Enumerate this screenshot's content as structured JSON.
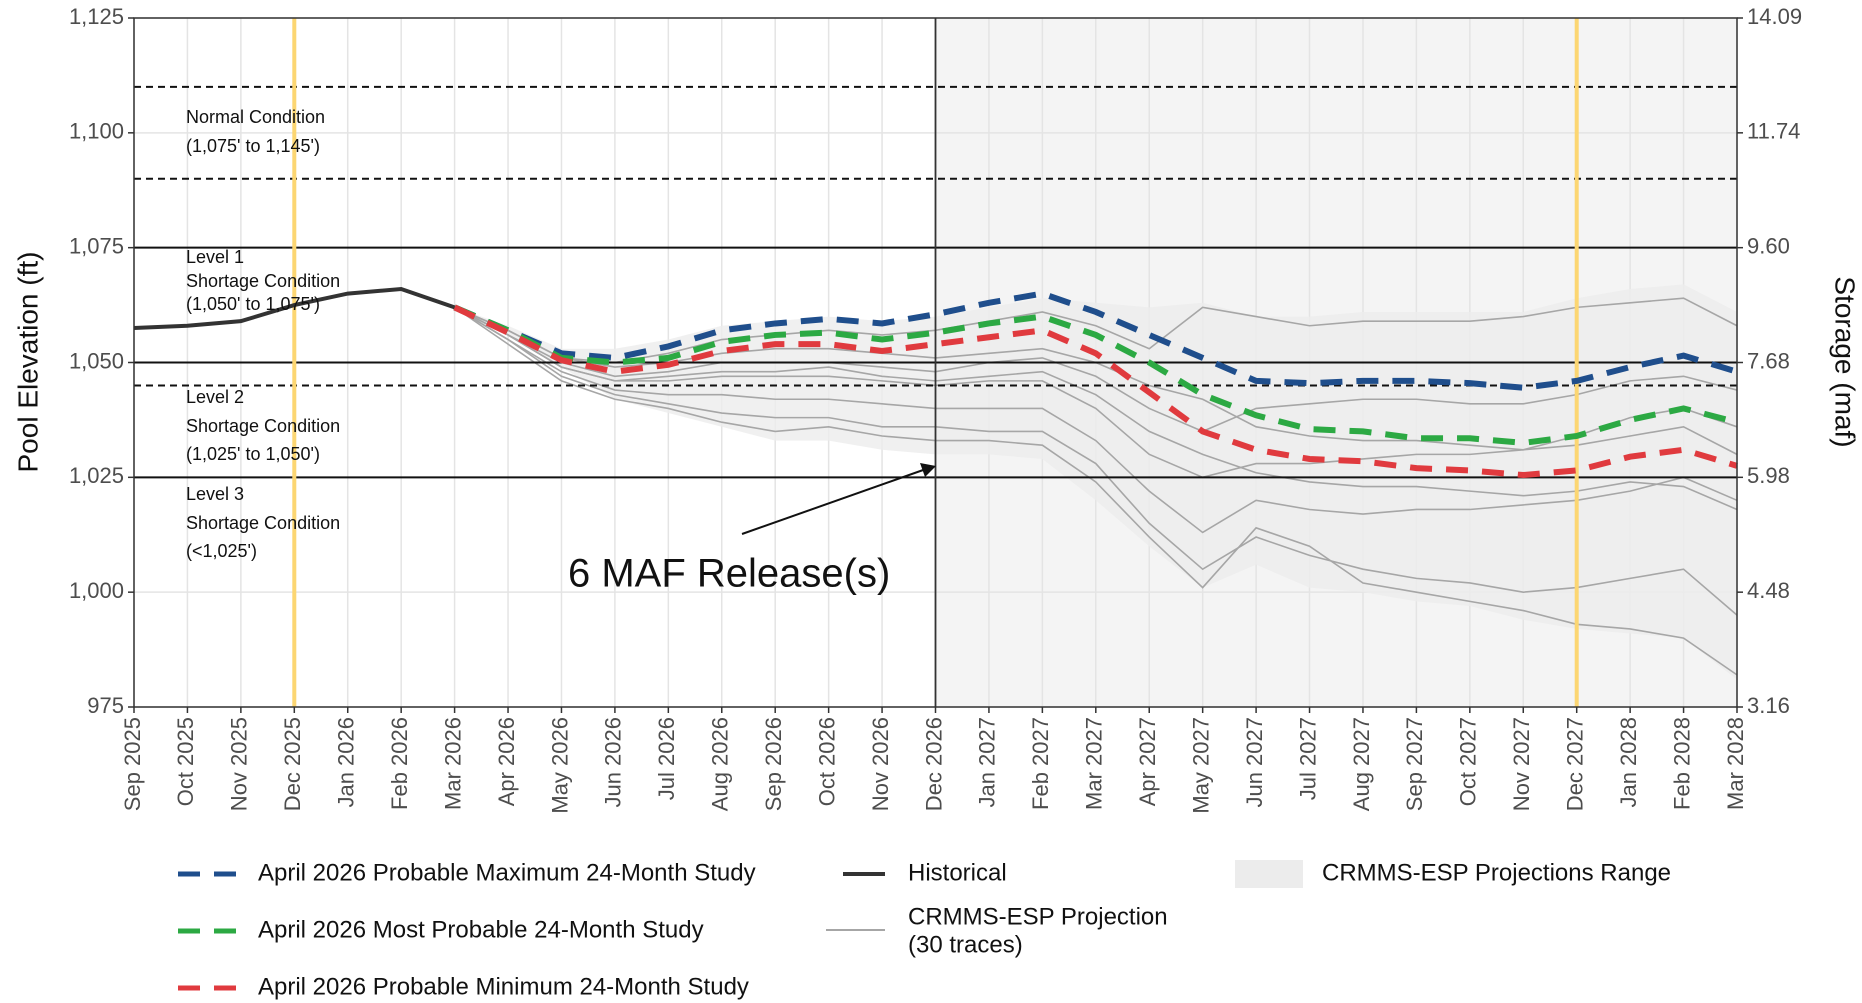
{
  "chart_data": {
    "type": "line",
    "ylabel": "Pool Elevation (ft)",
    "y2label": "Storage (maf)",
    "categories": [
      "Sep 2025",
      "Oct 2025",
      "Nov 2025",
      "Dec 2025",
      "Jan 2026",
      "Feb 2026",
      "Mar 2026",
      "Apr 2026",
      "May 2026",
      "Jun 2026",
      "Jul 2026",
      "Aug 2026",
      "Sep 2026",
      "Oct 2026",
      "Nov 2026",
      "Dec 2026",
      "Jan 2027",
      "Feb 2027",
      "Mar 2027",
      "Apr 2027",
      "May 2027",
      "Jun 2027",
      "Jul 2027",
      "Aug 2027",
      "Sep 2027",
      "Oct 2027",
      "Nov 2027",
      "Dec 2027",
      "Jan 2028",
      "Feb 2028",
      "Mar 2028"
    ],
    "ylim": [
      975,
      1125
    ],
    "yticks": [
      975,
      {
        "value": 1000,
        "label": "1,000"
      },
      {
        "value": 1025,
        "label": "1,025"
      },
      {
        "value": 1050,
        "label": "1,050"
      },
      {
        "value": 1075,
        "label": "1,075"
      },
      {
        "value": 1100,
        "label": "1,100"
      },
      {
        "value": 1125,
        "label": "1,125"
      }
    ],
    "y2lim": [
      3.16,
      14.09
    ],
    "y2ticks": [
      3.16,
      4.48,
      5.98,
      7.68,
      {
        "value": 9.6,
        "label": "9.60"
      },
      11.74,
      14.09
    ],
    "grid": true,
    "highlight_months": [
      "Dec 2025",
      "Dec 2027"
    ],
    "projection_start": "Dec 2026",
    "reference_lines": [
      {
        "value": 1110,
        "style": "dashed"
      },
      {
        "value": 1090,
        "style": "dashed"
      },
      {
        "value": 1075,
        "style": "solid"
      },
      {
        "value": 1050,
        "style": "solid"
      },
      {
        "value": 1045,
        "style": "dashed"
      },
      {
        "value": 1025,
        "style": "solid"
      }
    ],
    "annotations": [
      "Normal Condition",
      "(1,075' to 1,145')",
      "Level 1",
      "Shortage Condition",
      "(1,050' to 1,075')",
      "Level 2",
      "Shortage Condition",
      "(1,025' to 1,050')",
      "Level 3",
      "Shortage Condition",
      "(<1,025')"
    ],
    "callout": "6 MAF Release(s)",
    "range": {
      "name": "CRMMS-ESP Projections Range",
      "color": "#ececec",
      "upper": [
        null,
        null,
        null,
        null,
        null,
        null,
        1062,
        1058,
        1053,
        1053,
        1055,
        1058,
        1059,
        1060,
        1059,
        1060,
        1062,
        1064,
        1063,
        1062,
        1063,
        1060,
        1060,
        1061,
        1061,
        1061,
        1061,
        1064,
        1066,
        1067,
        1061
      ],
      "lower": [
        null,
        null,
        null,
        null,
        null,
        null,
        1062,
        1056,
        1049,
        1042,
        1039,
        1036,
        1033,
        1033,
        1031,
        1030,
        1030,
        1029,
        1020,
        1010,
        1001,
        1006,
        1001,
        1000,
        998,
        997,
        994,
        992,
        991,
        990,
        981
      ]
    },
    "traces": {
      "name": [
        "CRMMS-ESP Projection",
        "(30 traces)"
      ],
      "color": "#a6a6a6",
      "series": [
        [
          null,
          null,
          null,
          null,
          null,
          null,
          1062,
          1057,
          1051,
          1050,
          1052,
          1055,
          1056,
          1057,
          1056,
          1057,
          1059,
          1061,
          1058,
          1053,
          1062,
          1060,
          1058,
          1059,
          1059,
          1059,
          1060,
          1062,
          1063,
          1064,
          1058
        ],
        [
          null,
          null,
          null,
          null,
          null,
          null,
          1062,
          1056,
          1050,
          1047,
          1048,
          1050,
          1050,
          1050,
          1049,
          1048,
          1050,
          1051,
          1047,
          1040,
          1035,
          1040,
          1041,
          1042,
          1042,
          1041,
          1041,
          1043,
          1046,
          1047,
          1044
        ],
        [
          null,
          null,
          null,
          null,
          null,
          null,
          1062,
          1056,
          1049,
          1046,
          1046,
          1047,
          1047,
          1047,
          1046,
          1045,
          1046,
          1046,
          1040,
          1030,
          1025,
          1028,
          1028,
          1029,
          1030,
          1030,
          1031,
          1034,
          1038,
          1040,
          1036
        ],
        [
          null,
          null,
          null,
          null,
          null,
          null,
          1062,
          1055,
          1048,
          1044,
          1043,
          1043,
          1042,
          1042,
          1041,
          1040,
          1040,
          1040,
          1033,
          1022,
          1013,
          1020,
          1018,
          1017,
          1018,
          1018,
          1019,
          1020,
          1022,
          1025,
          1020
        ],
        [
          null,
          null,
          null,
          null,
          null,
          null,
          1062,
          1055,
          1047,
          1043,
          1041,
          1039,
          1038,
          1038,
          1036,
          1036,
          1035,
          1035,
          1028,
          1015,
          1005,
          1012,
          1008,
          1005,
          1003,
          1002,
          1000,
          1001,
          1003,
          1005,
          995
        ],
        [
          null,
          null,
          null,
          null,
          null,
          null,
          1062,
          1054,
          1046,
          1042,
          1040,
          1037,
          1035,
          1036,
          1034,
          1033,
          1033,
          1032,
          1024,
          1012,
          1001,
          1014,
          1010,
          1002,
          1000,
          998,
          996,
          993,
          992,
          990,
          982
        ],
        [
          null,
          null,
          null,
          null,
          null,
          null,
          1062,
          1056,
          1049,
          1046,
          1047,
          1048,
          1048,
          1049,
          1047,
          1046,
          1047,
          1048,
          1043,
          1035,
          1030,
          1026,
          1024,
          1023,
          1023,
          1022,
          1021,
          1022,
          1024,
          1023,
          1018
        ],
        [
          null,
          null,
          null,
          null,
          null,
          null,
          1062,
          1057,
          1051,
          1049,
          1050,
          1052,
          1053,
          1053,
          1052,
          1051,
          1052,
          1053,
          1050,
          1045,
          1042,
          1036,
          1034,
          1033,
          1033,
          1032,
          1031,
          1032,
          1034,
          1036,
          1030
        ]
      ]
    },
    "series": [
      {
        "name": "April 2026 Probable Maximum 24-Month Study",
        "color": "#1f4e8c",
        "style": "dashed",
        "values": [
          null,
          null,
          null,
          null,
          null,
          null,
          1062,
          1057,
          1052,
          1051,
          1053.5,
          1057,
          1058.5,
          1059.5,
          1058.5,
          1060.5,
          1063,
          1065,
          1061,
          1056,
          1051,
          1046,
          1045.5,
          1046,
          1046,
          1045.5,
          1044.5,
          1046,
          1049,
          1051.5,
          1048
        ]
      },
      {
        "name": "April 2026 Most Probable 24-Month Study",
        "color": "#2ca943",
        "style": "dashed",
        "values": [
          null,
          null,
          null,
          null,
          null,
          null,
          1062,
          1057,
          1051,
          1050,
          1051,
          1054.5,
          1056,
          1056.5,
          1055,
          1056.5,
          1058.5,
          1060,
          1056,
          1050,
          1043,
          1038.5,
          1035.5,
          1035,
          1033.5,
          1033.5,
          1032.5,
          1034,
          1037.5,
          1040,
          1037
        ]
      },
      {
        "name": "April 2026 Probable Minimum 24-Month Study",
        "color": "#e03a3e",
        "style": "dashed",
        "values": [
          null,
          null,
          null,
          null,
          null,
          null,
          1062,
          1056.5,
          1050.5,
          1048,
          1049.5,
          1052.5,
          1054,
          1054,
          1052.5,
          1054,
          1055.5,
          1057,
          1052,
          1043.5,
          1035,
          1031,
          1029,
          1028.5,
          1027,
          1026.5,
          1025.5,
          1026.5,
          1029.5,
          1031,
          1027.5
        ]
      },
      {
        "name": "Historical",
        "color": "#333333",
        "style": "solid",
        "values": [
          1057.5,
          1058,
          1059,
          1062.5,
          1065,
          1066,
          1062,
          null,
          null,
          null,
          null,
          null,
          null,
          null,
          null,
          null,
          null,
          null,
          null,
          null,
          null,
          null,
          null,
          null,
          null,
          null,
          null,
          null,
          null,
          null,
          null
        ]
      }
    ]
  }
}
